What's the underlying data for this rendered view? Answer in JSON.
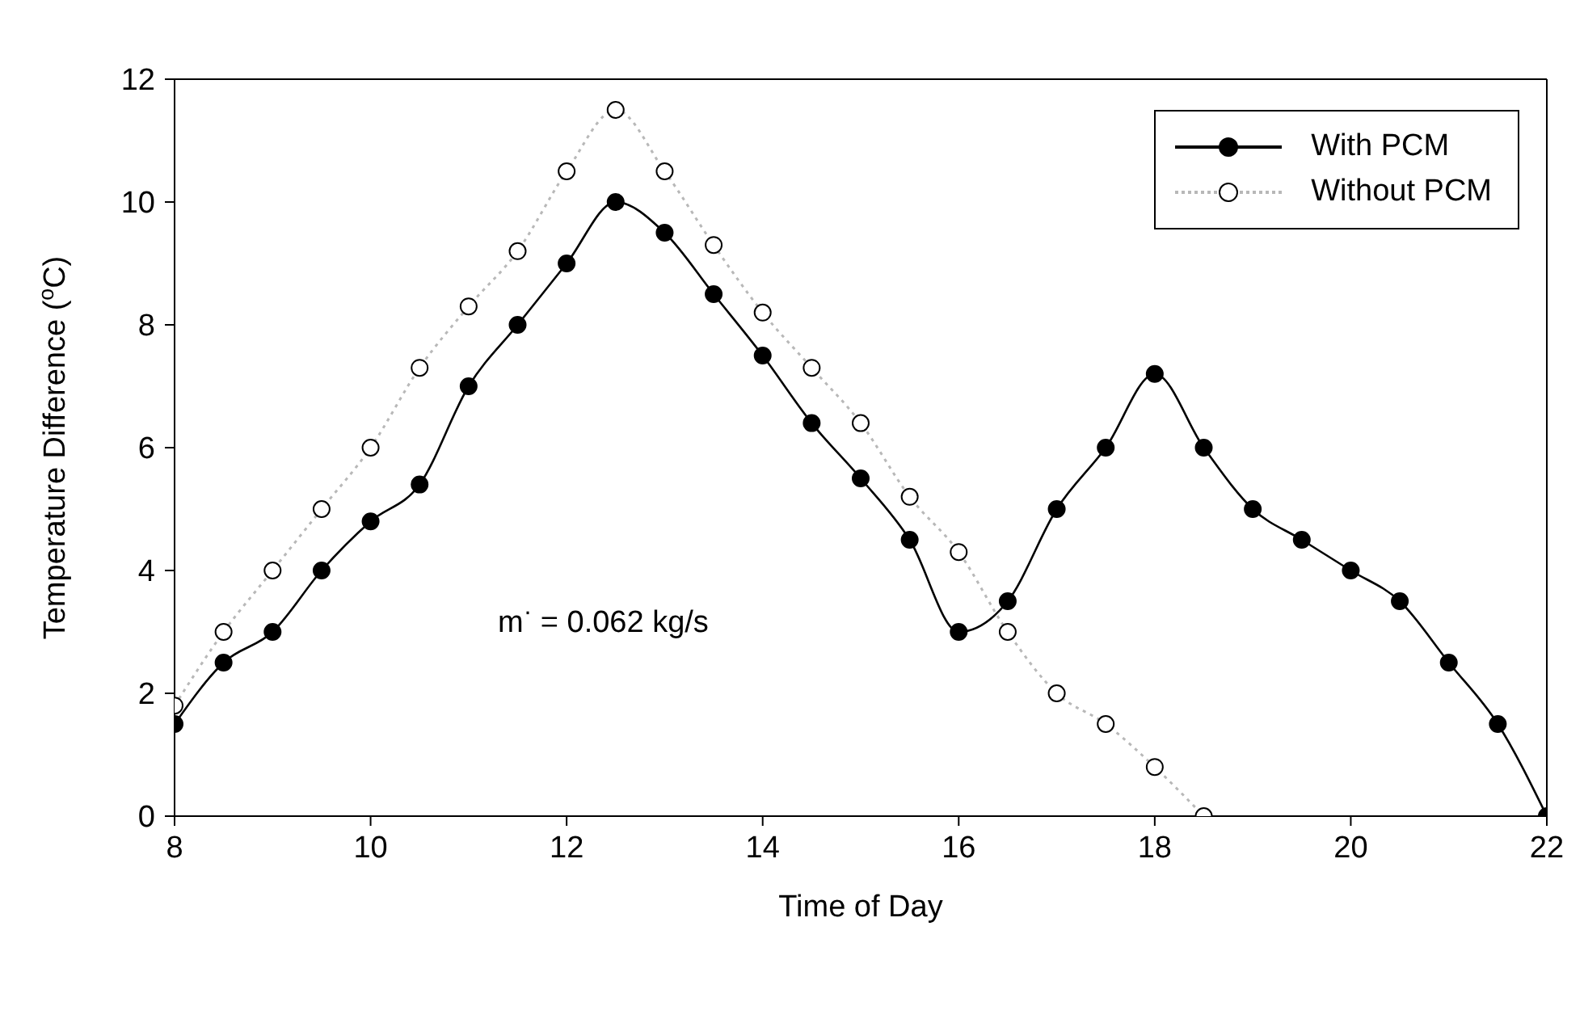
{
  "chart_data": {
    "type": "line",
    "xlabel": "Time of Day",
    "ylabel": "Temperature Difference ($^{o}$C)",
    "xlim": [
      8,
      22
    ],
    "xticks": [
      8,
      10,
      12,
      14,
      16,
      18,
      20,
      22
    ],
    "ylim": [
      0,
      12
    ],
    "yticks": [
      0,
      2,
      4,
      6,
      8,
      10,
      12
    ],
    "grid": false,
    "legend": "top right",
    "annotations": [
      "m$^{·}$ = 0.062 kg/s"
    ],
    "series": [
      {
        "name": "With PCM",
        "color": "#000000",
        "marker": "circle",
        "line_style": "solid",
        "x": [
          8,
          8.5,
          9,
          9.5,
          10,
          10.5,
          11,
          11.5,
          12,
          12.5,
          13,
          13.5,
          14,
          14.5,
          15,
          15.5,
          16,
          16.5,
          17,
          17.5,
          18,
          18.5,
          19,
          19.5,
          20,
          20.5,
          21,
          21.5,
          22
        ],
        "values": [
          1.5,
          2.5,
          3.0,
          4.0,
          4.8,
          5.4,
          7.0,
          8.0,
          9.0,
          10.0,
          9.5,
          8.5,
          7.5,
          6.4,
          5.5,
          4.5,
          3.0,
          3.5,
          5.0,
          6.0,
          7.2,
          6.0,
          5.0,
          4.5,
          4.0,
          3.5,
          2.5,
          1.5,
          0
        ]
      },
      {
        "name": "Without PCM",
        "color": "#ffffff",
        "marker": "circle",
        "line_style": "dotted",
        "x": [
          8,
          8.5,
          9,
          9.5,
          10,
          10.5,
          11,
          11.5,
          12,
          12.5,
          13,
          13.5,
          14,
          14.5,
          15,
          15.5,
          16,
          16.5,
          17,
          17.5,
          18,
          18.5
        ],
        "values": [
          1.8,
          3.0,
          4.0,
          5.0,
          6.0,
          7.3,
          8.3,
          9.2,
          10.5,
          11.5,
          10.5,
          9.3,
          8.2,
          7.3,
          6.4,
          5.2,
          4.3,
          3.0,
          2.0,
          1.5,
          0.8,
          0
        ]
      }
    ]
  }
}
